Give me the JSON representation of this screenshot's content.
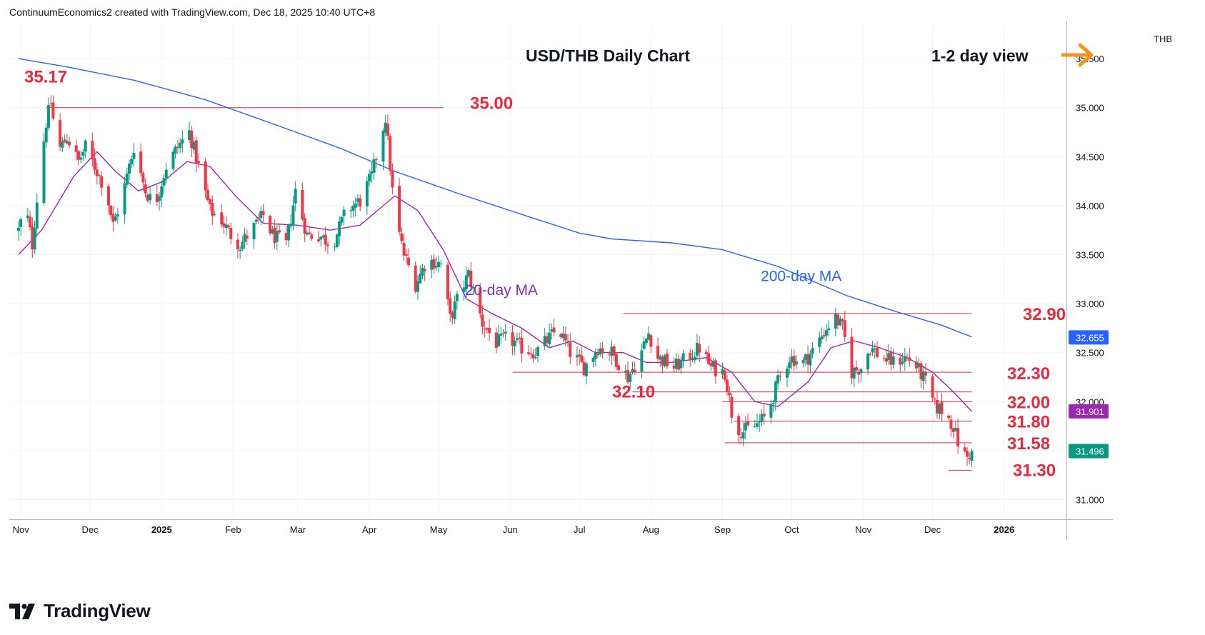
{
  "header": {
    "text": "ContinuumEconomics2 created with TradingView.com, Dec 18, 2025 10:40 UTC+8"
  },
  "brand": {
    "name": "TradingView",
    "icon": "tradingview-logo-icon"
  },
  "chart_data": {
    "type": "candlestick",
    "title": "USD/THB Daily Chart",
    "view_label": "1-2 day view",
    "view_icon": "arrow-right-icon",
    "currency": "THB",
    "y_range": [
      30.9,
      35.9
    ],
    "y_ticks": [
      "31.000",
      "31.500",
      "32.000",
      "32.500",
      "33.000",
      "33.500",
      "34.000",
      "34.500",
      "35.000",
      "35.500"
    ],
    "x_ticks": [
      "Nov",
      "Dec",
      "2025",
      "Feb",
      "Mar",
      "Apr",
      "May",
      "Jun",
      "Jul",
      "Aug",
      "Sep",
      "Oct",
      "Nov",
      "Dec",
      "2026"
    ],
    "colors": {
      "up": "#089981",
      "down": "#f23645",
      "ma20": "#9c27b0",
      "ma200": "#2962ff",
      "level": "#e8283c",
      "arrow": "#f7931a"
    },
    "price_tags": [
      {
        "value": 32.655,
        "label": "32.655",
        "color": "#2962ff"
      },
      {
        "value": 31.901,
        "label": "31.901",
        "color": "#9c27b0"
      },
      {
        "value": 31.496,
        "label": "31.496",
        "color": "#089981"
      }
    ],
    "levels": [
      {
        "value": 35.17,
        "label": "35.17",
        "from": "2024-11-14",
        "to": "2024-11-14"
      },
      {
        "value": 35.0,
        "label": "35.00",
        "from": "2024-11-12",
        "to": "2025-05-03"
      },
      {
        "value": 32.9,
        "label": "32.90",
        "from": "2025-07-20",
        "to": "2025-12-18"
      },
      {
        "value": 32.3,
        "label": "32.30",
        "from": "2025-06-02",
        "to": "2025-12-18"
      },
      {
        "value": 32.1,
        "label": "32.10",
        "from": "2025-07-24",
        "to": "2025-12-18"
      },
      {
        "value": 32.0,
        "label": "32.00",
        "from": "2025-09-01",
        "to": "2025-12-18"
      },
      {
        "value": 31.8,
        "label": "31.80",
        "from": "2025-09-06",
        "to": "2025-12-18"
      },
      {
        "value": 31.58,
        "label": "31.58",
        "from": "2025-09-02",
        "to": "2025-12-18"
      },
      {
        "value": 31.3,
        "label": "31.30",
        "from": "2025-12-08",
        "to": "2025-12-18"
      }
    ],
    "series": [
      {
        "name": "USD/THB",
        "anchors": [
          [
            "2024-10-31",
            33.75
          ],
          [
            "2024-11-03",
            34.0
          ],
          [
            "2024-11-06",
            33.6
          ],
          [
            "2024-11-09",
            34.3
          ],
          [
            "2024-11-12",
            34.85
          ],
          [
            "2024-11-14",
            35.05
          ],
          [
            "2024-11-17",
            34.55
          ],
          [
            "2024-11-21",
            34.7
          ],
          [
            "2024-11-26",
            34.45
          ],
          [
            "2024-11-29",
            34.6
          ],
          [
            "2024-12-03",
            34.4
          ],
          [
            "2024-12-08",
            34.15
          ],
          [
            "2024-12-11",
            33.8
          ],
          [
            "2024-12-15",
            34.1
          ],
          [
            "2024-12-20",
            34.6
          ],
          [
            "2024-12-25",
            34.15
          ],
          [
            "2024-12-29",
            34.0
          ],
          [
            "2025-01-03",
            34.4
          ],
          [
            "2025-01-08",
            34.6
          ],
          [
            "2025-01-13",
            34.75
          ],
          [
            "2025-01-17",
            34.4
          ],
          [
            "2025-01-22",
            33.95
          ],
          [
            "2025-01-27",
            33.85
          ],
          [
            "2025-01-31",
            33.7
          ],
          [
            "2025-02-04",
            33.6
          ],
          [
            "2025-02-09",
            33.75
          ],
          [
            "2025-02-14",
            33.9
          ],
          [
            "2025-02-18",
            33.7
          ],
          [
            "2025-02-24",
            33.6
          ],
          [
            "2025-02-28",
            34.15
          ],
          [
            "2025-03-05",
            33.7
          ],
          [
            "2025-03-10",
            33.7
          ],
          [
            "2025-03-16",
            33.6
          ],
          [
            "2025-03-22",
            33.95
          ],
          [
            "2025-03-28",
            34.05
          ],
          [
            "2025-04-02",
            34.3
          ],
          [
            "2025-04-08",
            34.9
          ],
          [
            "2025-04-12",
            33.9
          ],
          [
            "2025-04-16",
            33.5
          ],
          [
            "2025-04-21",
            33.2
          ],
          [
            "2025-04-26",
            33.45
          ],
          [
            "2025-05-02",
            33.4
          ],
          [
            "2025-05-06",
            32.85
          ],
          [
            "2025-05-10",
            33.1
          ],
          [
            "2025-05-14",
            33.3
          ],
          [
            "2025-05-20",
            32.8
          ],
          [
            "2025-05-26",
            32.6
          ],
          [
            "2025-05-31",
            32.65
          ],
          [
            "2025-06-06",
            32.55
          ],
          [
            "2025-06-12",
            32.5
          ],
          [
            "2025-06-18",
            32.65
          ],
          [
            "2025-06-22",
            32.75
          ],
          [
            "2025-06-27",
            32.5
          ],
          [
            "2025-07-03",
            32.35
          ],
          [
            "2025-07-09",
            32.55
          ],
          [
            "2025-07-15",
            32.5
          ],
          [
            "2025-07-22",
            32.25
          ],
          [
            "2025-07-27",
            32.45
          ],
          [
            "2025-07-31",
            32.7
          ],
          [
            "2025-08-04",
            32.45
          ],
          [
            "2025-08-11",
            32.35
          ],
          [
            "2025-08-17",
            32.45
          ],
          [
            "2025-08-22",
            32.55
          ],
          [
            "2025-08-27",
            32.35
          ],
          [
            "2025-09-02",
            32.3
          ],
          [
            "2025-09-06",
            31.75
          ],
          [
            "2025-09-10",
            31.7
          ],
          [
            "2025-09-15",
            31.75
          ],
          [
            "2025-09-20",
            31.85
          ],
          [
            "2025-09-25",
            32.2
          ],
          [
            "2025-09-30",
            32.45
          ],
          [
            "2025-10-06",
            32.4
          ],
          [
            "2025-10-11",
            32.55
          ],
          [
            "2025-10-16",
            32.75
          ],
          [
            "2025-10-20",
            32.85
          ],
          [
            "2025-10-23",
            32.75
          ],
          [
            "2025-10-27",
            32.3
          ],
          [
            "2025-10-31",
            32.35
          ],
          [
            "2025-11-04",
            32.55
          ],
          [
            "2025-11-09",
            32.45
          ],
          [
            "2025-11-14",
            32.4
          ],
          [
            "2025-11-19",
            32.45
          ],
          [
            "2025-11-23",
            32.4
          ],
          [
            "2025-11-28",
            32.2
          ],
          [
            "2025-12-02",
            31.95
          ],
          [
            "2025-12-06",
            31.9
          ],
          [
            "2025-12-10",
            31.75
          ],
          [
            "2025-12-13",
            31.5
          ],
          [
            "2025-12-16",
            31.43
          ],
          [
            "2025-12-18",
            31.5
          ]
        ]
      },
      {
        "name": "200-day MA",
        "points": [
          [
            "2024-10-31",
            35.5
          ],
          [
            "2024-11-20",
            35.42
          ],
          [
            "2024-12-20",
            35.28
          ],
          [
            "2025-01-20",
            35.08
          ],
          [
            "2025-02-20",
            34.82
          ],
          [
            "2025-03-20",
            34.58
          ],
          [
            "2025-04-12",
            34.35
          ],
          [
            "2025-05-10",
            34.12
          ],
          [
            "2025-06-10",
            33.88
          ],
          [
            "2025-07-01",
            33.72
          ],
          [
            "2025-07-15",
            33.66
          ],
          [
            "2025-08-10",
            33.62
          ],
          [
            "2025-09-01",
            33.55
          ],
          [
            "2025-09-25",
            33.38
          ],
          [
            "2025-10-25",
            33.08
          ],
          [
            "2025-11-15",
            32.92
          ],
          [
            "2025-12-05",
            32.78
          ],
          [
            "2025-12-18",
            32.66
          ]
        ]
      },
      {
        "name": "20-day MA",
        "points": [
          [
            "2024-10-31",
            33.5
          ],
          [
            "2024-11-10",
            33.75
          ],
          [
            "2024-11-24",
            34.3
          ],
          [
            "2024-12-04",
            34.55
          ],
          [
            "2024-12-12",
            34.35
          ],
          [
            "2024-12-22",
            34.15
          ],
          [
            "2025-01-02",
            34.25
          ],
          [
            "2025-01-12",
            34.45
          ],
          [
            "2025-01-22",
            34.4
          ],
          [
            "2025-02-02",
            34.1
          ],
          [
            "2025-02-14",
            33.82
          ],
          [
            "2025-03-01",
            33.8
          ],
          [
            "2025-03-15",
            33.75
          ],
          [
            "2025-03-28",
            33.8
          ],
          [
            "2025-04-06",
            33.98
          ],
          [
            "2025-04-12",
            34.1
          ],
          [
            "2025-04-22",
            33.95
          ],
          [
            "2025-05-03",
            33.55
          ],
          [
            "2025-05-13",
            33.05
          ],
          [
            "2025-05-24",
            32.9
          ],
          [
            "2025-06-06",
            32.75
          ],
          [
            "2025-06-18",
            32.55
          ],
          [
            "2025-06-28",
            32.62
          ],
          [
            "2025-07-08",
            32.5
          ],
          [
            "2025-07-20",
            32.5
          ],
          [
            "2025-07-30",
            32.4
          ],
          [
            "2025-08-10",
            32.4
          ],
          [
            "2025-08-25",
            32.45
          ],
          [
            "2025-09-05",
            32.3
          ],
          [
            "2025-09-15",
            32.0
          ],
          [
            "2025-09-25",
            31.95
          ],
          [
            "2025-10-08",
            32.2
          ],
          [
            "2025-10-18",
            32.55
          ],
          [
            "2025-10-28",
            32.62
          ],
          [
            "2025-11-08",
            32.55
          ],
          [
            "2025-11-20",
            32.45
          ],
          [
            "2025-12-01",
            32.3
          ],
          [
            "2025-12-10",
            32.1
          ],
          [
            "2025-12-18",
            31.9
          ]
        ]
      }
    ],
    "annotations": [
      {
        "text": "20-day MA",
        "color": "#7b2fbe",
        "date": "2025-05-20",
        "value": 33.14
      },
      {
        "text": "200-day MA",
        "color": "#2962ff",
        "date": "2025-09-25",
        "value": 33.28
      }
    ]
  }
}
